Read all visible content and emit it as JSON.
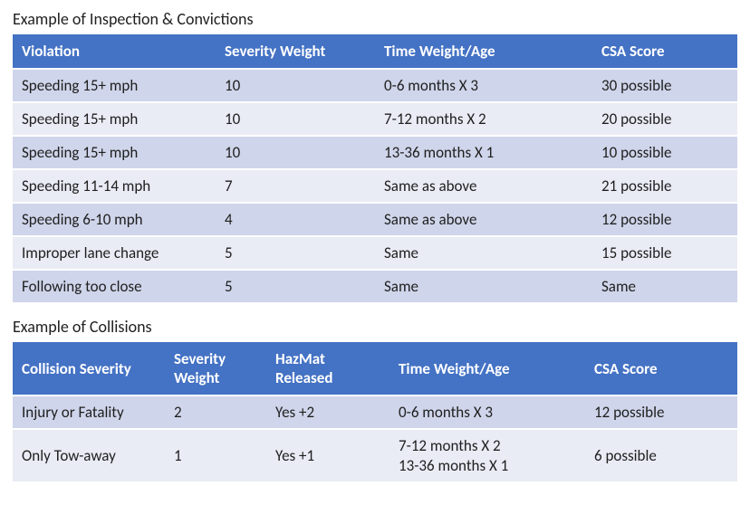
{
  "colors": {
    "header_bg": "#4472c4",
    "header_text": "#ffffff",
    "row_odd_bg": "#cfd5ea",
    "row_even_bg": "#e9ebf5",
    "text": "#1f1f1f",
    "page_bg": "#ffffff",
    "row_separator": "#ffffff"
  },
  "typography": {
    "font_family": "Calibri",
    "title_fontsize_pt": 14,
    "cell_fontsize_pt": 13,
    "header_weight": 700
  },
  "table1": {
    "title": "Example of Inspection & Convictions",
    "columns": [
      "Violation",
      "Severity Weight",
      "Time Weight/Age",
      "CSA Score"
    ],
    "col_widths_pct": [
      28,
      22,
      30,
      20
    ],
    "rows": [
      [
        "Speeding 15+ mph",
        "10",
        "0-6 months X 3",
        "30 possible"
      ],
      [
        "Speeding 15+ mph",
        "10",
        "7-12 months X 2",
        "20 possible"
      ],
      [
        "Speeding 15+ mph",
        "10",
        "13-36 months X 1",
        "10 possible"
      ],
      [
        "Speeding 11-14 mph",
        "7",
        "Same as above",
        "21 possible"
      ],
      [
        "Speeding 6-10 mph",
        "4",
        "Same as above",
        "12 possible"
      ],
      [
        "Improper lane change",
        "5",
        "Same",
        "15 possible"
      ],
      [
        "Following too close",
        "5",
        "Same",
        "Same"
      ]
    ]
  },
  "table2": {
    "title": "Example of Collisions",
    "columns": [
      "Collision Severity",
      "Severity Weight",
      "HazMat Released",
      "Time Weight/Age",
      "CSA Score"
    ],
    "col_widths_pct": [
      21,
      14,
      17,
      27,
      21
    ],
    "rows": [
      [
        "Injury or Fatality",
        "2",
        "Yes +2",
        "0-6 months X 3",
        "12 possible"
      ],
      [
        "Only Tow-away",
        "1",
        "Yes +1",
        "7-12 months X 2\n13-36 months X 1",
        "6 possible"
      ]
    ]
  }
}
